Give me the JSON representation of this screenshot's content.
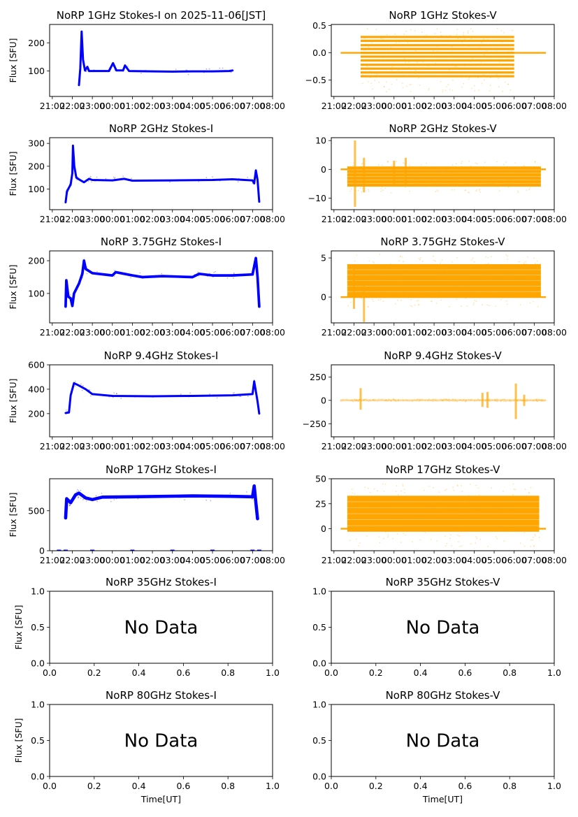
{
  "figure": {
    "colors": {
      "stokes_i": "#0000ff",
      "stokes_v": "#ffa500",
      "axis": "#000000",
      "background": "#ffffff"
    }
  },
  "chart_data": [
    {
      "id": "1ghz-i",
      "type": "scatter",
      "title": "NoRP 1GHz Stokes-I on 2025-11-06[JST]",
      "ylabel": "Flux [SFU]",
      "xlabel": "",
      "series_color": "stokes_i",
      "xlim": [
        "20:52",
        "08:00"
      ],
      "ylim": [
        10,
        265
      ],
      "xticks": [
        "21:00",
        "22:00",
        "23:00",
        "00:00",
        "01:00",
        "02:00",
        "03:00",
        "04:00",
        "05:00",
        "06:00",
        "07:00",
        "08:00"
      ],
      "yticks": [
        100,
        200
      ],
      "profile": [
        [
          "22:20",
          50
        ],
        [
          "22:24",
          110
        ],
        [
          "22:28",
          240
        ],
        [
          "22:32",
          140
        ],
        [
          "22:38",
          102
        ],
        [
          "22:45",
          115
        ],
        [
          "22:50",
          100
        ],
        [
          "23:50",
          100
        ],
        [
          "24:02",
          128
        ],
        [
          "24:12",
          102
        ],
        [
          "24:32",
          102
        ],
        [
          "24:38",
          120
        ],
        [
          "24:50",
          100
        ],
        [
          "26:00",
          99
        ],
        [
          "27:00",
          98
        ],
        [
          "28:00",
          99
        ],
        [
          "29:00",
          99
        ],
        [
          "29:50",
          100
        ],
        [
          "30:00",
          102
        ]
      ],
      "band": 4
    },
    {
      "id": "1ghz-v",
      "type": "scatter",
      "title": "NoRP 1GHz Stokes-V",
      "ylabel": "",
      "xlabel": "",
      "series_color": "stokes_v",
      "xlim": [
        "20:52",
        "08:00"
      ],
      "ylim": [
        -0.8,
        0.52
      ],
      "xticks": [
        "21:00",
        "22:00",
        "23:00",
        "00:00",
        "01:00",
        "02:00",
        "03:00",
        "04:00",
        "05:00",
        "06:00",
        "07:00",
        "08:00"
      ],
      "yticks": [
        -0.5,
        0.0,
        0.5
      ],
      "ytick_labels": [
        "−0.5",
        "0.0",
        "0.5"
      ],
      "quantized_levels": [
        -0.43,
        -0.36,
        -0.29,
        -0.22,
        -0.14,
        -0.07,
        0.0,
        0.07,
        0.14,
        0.22,
        0.29
      ],
      "active_range": [
        "22:20",
        "30:00"
      ],
      "flat_range": [
        "21:20",
        "31:35"
      ],
      "outlier_spread": [
        -0.72,
        0.45
      ]
    },
    {
      "id": "2ghz-i",
      "type": "scatter",
      "title": "NoRP 2GHz Stokes-I",
      "ylabel": "Flux [SFU]",
      "xlabel": "",
      "series_color": "stokes_i",
      "xlim": [
        "20:52",
        "08:00"
      ],
      "ylim": [
        10,
        325
      ],
      "xticks": [
        "21:00",
        "22:00",
        "23:00",
        "00:00",
        "01:00",
        "02:00",
        "03:00",
        "04:00",
        "05:00",
        "06:00",
        "07:00",
        "08:00"
      ],
      "yticks": [
        100,
        200,
        300
      ],
      "profile": [
        [
          "21:40",
          42
        ],
        [
          "21:44",
          90
        ],
        [
          "21:55",
          120
        ],
        [
          "22:00",
          170
        ],
        [
          "22:02",
          290
        ],
        [
          "22:06",
          200
        ],
        [
          "22:12",
          150
        ],
        [
          "22:25",
          138
        ],
        [
          "22:35",
          130
        ],
        [
          "22:50",
          145
        ],
        [
          "23:00",
          140
        ],
        [
          "24:00",
          138
        ],
        [
          "24:35",
          145
        ],
        [
          "25:00",
          137
        ],
        [
          "27:00",
          138
        ],
        [
          "29:00",
          140
        ],
        [
          "30:00",
          143
        ],
        [
          "31:00",
          138
        ],
        [
          "31:05",
          125
        ],
        [
          "31:10",
          182
        ],
        [
          "31:15",
          140
        ],
        [
          "31:20",
          45
        ]
      ],
      "band": 8
    },
    {
      "id": "2ghz-v",
      "type": "scatter",
      "title": "NoRP 2GHz Stokes-V",
      "ylabel": "",
      "xlabel": "",
      "series_color": "stokes_v",
      "xlim": [
        "20:52",
        "08:00"
      ],
      "ylim": [
        -14,
        11
      ],
      "xticks": [
        "21:00",
        "22:00",
        "23:00",
        "00:00",
        "01:00",
        "02:00",
        "03:00",
        "04:00",
        "05:00",
        "06:00",
        "07:00",
        "08:00"
      ],
      "yticks": [
        -10,
        0,
        10
      ],
      "ytick_labels": [
        "−10",
        "0",
        "10"
      ],
      "body_range": [
        -6,
        1
      ],
      "active_range": [
        "21:40",
        "31:20"
      ],
      "flat_range": [
        "21:20",
        "31:35"
      ],
      "spikes": [
        [
          "22:03",
          -13,
          10
        ],
        [
          "22:30",
          -8,
          4
        ],
        [
          "24:35",
          -5,
          4
        ],
        [
          "24:00",
          -5,
          3
        ]
      ]
    },
    {
      "id": "375ghz-i",
      "type": "scatter",
      "title": "NoRP 3.75GHz Stokes-I",
      "ylabel": "Flux [SFU]",
      "xlabel": "",
      "series_color": "stokes_i",
      "xlim": [
        "20:52",
        "08:00"
      ],
      "ylim": [
        10,
        230
      ],
      "xticks": [
        "21:00",
        "22:00",
        "23:00",
        "00:00",
        "01:00",
        "02:00",
        "03:00",
        "04:00",
        "05:00",
        "06:00",
        "07:00",
        "08:00"
      ],
      "yticks": [
        100,
        200
      ],
      "profile": [
        [
          "21:40",
          60
        ],
        [
          "21:42",
          140
        ],
        [
          "21:48",
          90
        ],
        [
          "21:55",
          85
        ],
        [
          "22:00",
          62
        ],
        [
          "22:05",
          100
        ],
        [
          "22:20",
          130
        ],
        [
          "22:30",
          160
        ],
        [
          "22:35",
          200
        ],
        [
          "22:40",
          175
        ],
        [
          "23:00",
          162
        ],
        [
          "24:00",
          155
        ],
        [
          "24:10",
          165
        ],
        [
          "25:00",
          155
        ],
        [
          "25:30",
          150
        ],
        [
          "26:30",
          153
        ],
        [
          "28:00",
          150
        ],
        [
          "28:20",
          160
        ],
        [
          "29:00",
          155
        ],
        [
          "30:00",
          155
        ],
        [
          "31:00",
          158
        ],
        [
          "31:10",
          208
        ],
        [
          "31:15",
          150
        ],
        [
          "31:20",
          60
        ]
      ],
      "band": 8
    },
    {
      "id": "375ghz-v",
      "type": "scatter",
      "title": "NoRP 3.75GHz Stokes-V",
      "ylabel": "",
      "xlabel": "",
      "series_color": "stokes_v",
      "xlim": [
        "20:52",
        "08:00"
      ],
      "ylim": [
        -3.3,
        5.9
      ],
      "xticks": [
        "21:00",
        "22:00",
        "23:00",
        "00:00",
        "01:00",
        "02:00",
        "03:00",
        "04:00",
        "05:00",
        "06:00",
        "07:00",
        "08:00"
      ],
      "yticks": [
        0,
        5
      ],
      "body_range": [
        0,
        4.2
      ],
      "active_range": [
        "21:40",
        "31:20"
      ],
      "flat_range": [
        "21:20",
        "31:35"
      ],
      "spikes": [
        [
          "22:30",
          -3.2,
          2
        ],
        [
          "22:00",
          -1.5,
          4
        ]
      ]
    },
    {
      "id": "94ghz-i",
      "type": "scatter",
      "title": "NoRP 9.4GHz Stokes-I",
      "ylabel": "Flux [SFU]",
      "xlabel": "",
      "series_color": "stokes_i",
      "xlim": [
        "20:52",
        "08:00"
      ],
      "ylim": [
        10,
        600
      ],
      "xticks": [
        "21:00",
        "22:00",
        "23:00",
        "00:00",
        "01:00",
        "02:00",
        "03:00",
        "04:00",
        "05:00",
        "06:00",
        "07:00",
        "08:00"
      ],
      "yticks": [
        200,
        400,
        600
      ],
      "profile": [
        [
          "21:40",
          205
        ],
        [
          "21:50",
          210
        ],
        [
          "21:55",
          350
        ],
        [
          "22:05",
          450
        ],
        [
          "22:20",
          430
        ],
        [
          "22:40",
          400
        ],
        [
          "23:00",
          360
        ],
        [
          "24:00",
          345
        ],
        [
          "26:00",
          342
        ],
        [
          "28:00",
          345
        ],
        [
          "30:00",
          350
        ],
        [
          "31:00",
          360
        ],
        [
          "31:05",
          465
        ],
        [
          "31:15",
          300
        ],
        [
          "31:20",
          200
        ]
      ],
      "band": 14
    },
    {
      "id": "94ghz-v",
      "type": "scatter",
      "title": "NoRP 9.4GHz Stokes-V",
      "ylabel": "",
      "xlabel": "",
      "series_color": "stokes_v",
      "xlim": [
        "20:52",
        "08:00"
      ],
      "ylim": [
        -390,
        380
      ],
      "xticks": [
        "21:00",
        "22:00",
        "23:00",
        "00:00",
        "01:00",
        "02:00",
        "03:00",
        "04:00",
        "05:00",
        "06:00",
        "07:00",
        "08:00"
      ],
      "yticks": [
        -250,
        0,
        250
      ],
      "ytick_labels": [
        "−250",
        "0",
        "250"
      ],
      "body_range": [
        -8,
        8
      ],
      "active_range": [
        "21:20",
        "31:35"
      ],
      "flat_range": [
        "21:20",
        "31:35"
      ],
      "spikes": [
        [
          "22:20",
          -100,
          130
        ],
        [
          "28:25",
          -70,
          80
        ],
        [
          "28:40",
          -80,
          90
        ],
        [
          "30:05",
          -200,
          180
        ],
        [
          "30:30",
          -60,
          60
        ]
      ]
    },
    {
      "id": "17ghz-i",
      "type": "scatter",
      "title": "NoRP 17GHz Stokes-I",
      "ylabel": "Flux [SFU]",
      "xlabel": "",
      "series_color": "stokes_i",
      "xlim": [
        "20:52",
        "08:00"
      ],
      "ylim": [
        0,
        900
      ],
      "xticks": [
        "21:00",
        "22:00",
        "23:00",
        "00:00",
        "01:00",
        "02:00",
        "03:00",
        "04:00",
        "05:00",
        "06:00",
        "07:00",
        "08:00"
      ],
      "yticks": [
        0,
        500
      ],
      "profile": [
        [
          "21:40",
          410
        ],
        [
          "21:43",
          650
        ],
        [
          "21:55",
          600
        ],
        [
          "22:10",
          700
        ],
        [
          "22:20",
          720
        ],
        [
          "22:40",
          660
        ],
        [
          "23:00",
          640
        ],
        [
          "23:30",
          670
        ],
        [
          "25:00",
          675
        ],
        [
          "28:00",
          685
        ],
        [
          "30:00",
          680
        ],
        [
          "31:00",
          675
        ],
        [
          "31:05",
          810
        ],
        [
          "31:10",
          600
        ],
        [
          "31:15",
          400
        ]
      ],
      "band": 40,
      "zero_marks": [
        "21:20",
        "21:40",
        "23:00",
        "01:00",
        "03:00",
        "05:00",
        "07:00",
        "07:20"
      ]
    },
    {
      "id": "17ghz-v",
      "type": "scatter",
      "title": "NoRP 17GHz Stokes-V",
      "ylabel": "",
      "xlabel": "",
      "series_color": "stokes_v",
      "xlim": [
        "20:52",
        "08:00"
      ],
      "ylim": [
        -22,
        50
      ],
      "xticks": [
        "21:00",
        "22:00",
        "23:00",
        "00:00",
        "01:00",
        "02:00",
        "03:00",
        "04:00",
        "05:00",
        "06:00",
        "07:00",
        "08:00"
      ],
      "yticks": [
        0,
        25,
        50
      ],
      "body_range": [
        -3,
        33
      ],
      "active_range": [
        "21:40",
        "31:15"
      ],
      "flat_range": [
        "21:20",
        "31:35"
      ],
      "outlier_spread": [
        -18,
        45
      ]
    },
    {
      "id": "35ghz-i",
      "type": "empty",
      "title": "NoRP 35GHz Stokes-I",
      "ylabel": "Flux [SFU]",
      "xlabel": "",
      "message": "No Data",
      "xlim": [
        0,
        1
      ],
      "ylim": [
        0,
        1
      ],
      "xticks": [
        "0.0",
        "0.2",
        "0.4",
        "0.6",
        "0.8",
        "1.0"
      ],
      "yticks": [
        "0.0",
        "0.5",
        "1.0"
      ]
    },
    {
      "id": "35ghz-v",
      "type": "empty",
      "title": "NoRP 35GHz Stokes-V",
      "ylabel": "",
      "xlabel": "",
      "message": "No Data",
      "xlim": [
        0,
        1
      ],
      "ylim": [
        0,
        1
      ],
      "xticks": [
        "0.0",
        "0.2",
        "0.4",
        "0.6",
        "0.8",
        "1.0"
      ],
      "yticks": [
        "0.0",
        "0.5",
        "1.0"
      ]
    },
    {
      "id": "80ghz-i",
      "type": "empty",
      "title": "NoRP 80GHz Stokes-I",
      "ylabel": "Flux [SFU]",
      "xlabel": "Time[UT]",
      "message": "No Data",
      "xlim": [
        0,
        1
      ],
      "ylim": [
        0,
        1
      ],
      "xticks": [
        "0.0",
        "0.2",
        "0.4",
        "0.6",
        "0.8",
        "1.0"
      ],
      "yticks": [
        "0.0",
        "0.5",
        "1.0"
      ]
    },
    {
      "id": "80ghz-v",
      "type": "empty",
      "title": "NoRP 80GHz Stokes-V",
      "ylabel": "",
      "xlabel": "Time[UT]",
      "message": "No Data",
      "xlim": [
        0,
        1
      ],
      "ylim": [
        0,
        1
      ],
      "xticks": [
        "0.0",
        "0.2",
        "0.4",
        "0.6",
        "0.8",
        "1.0"
      ],
      "yticks": [
        "0.0",
        "0.5",
        "1.0"
      ]
    }
  ]
}
